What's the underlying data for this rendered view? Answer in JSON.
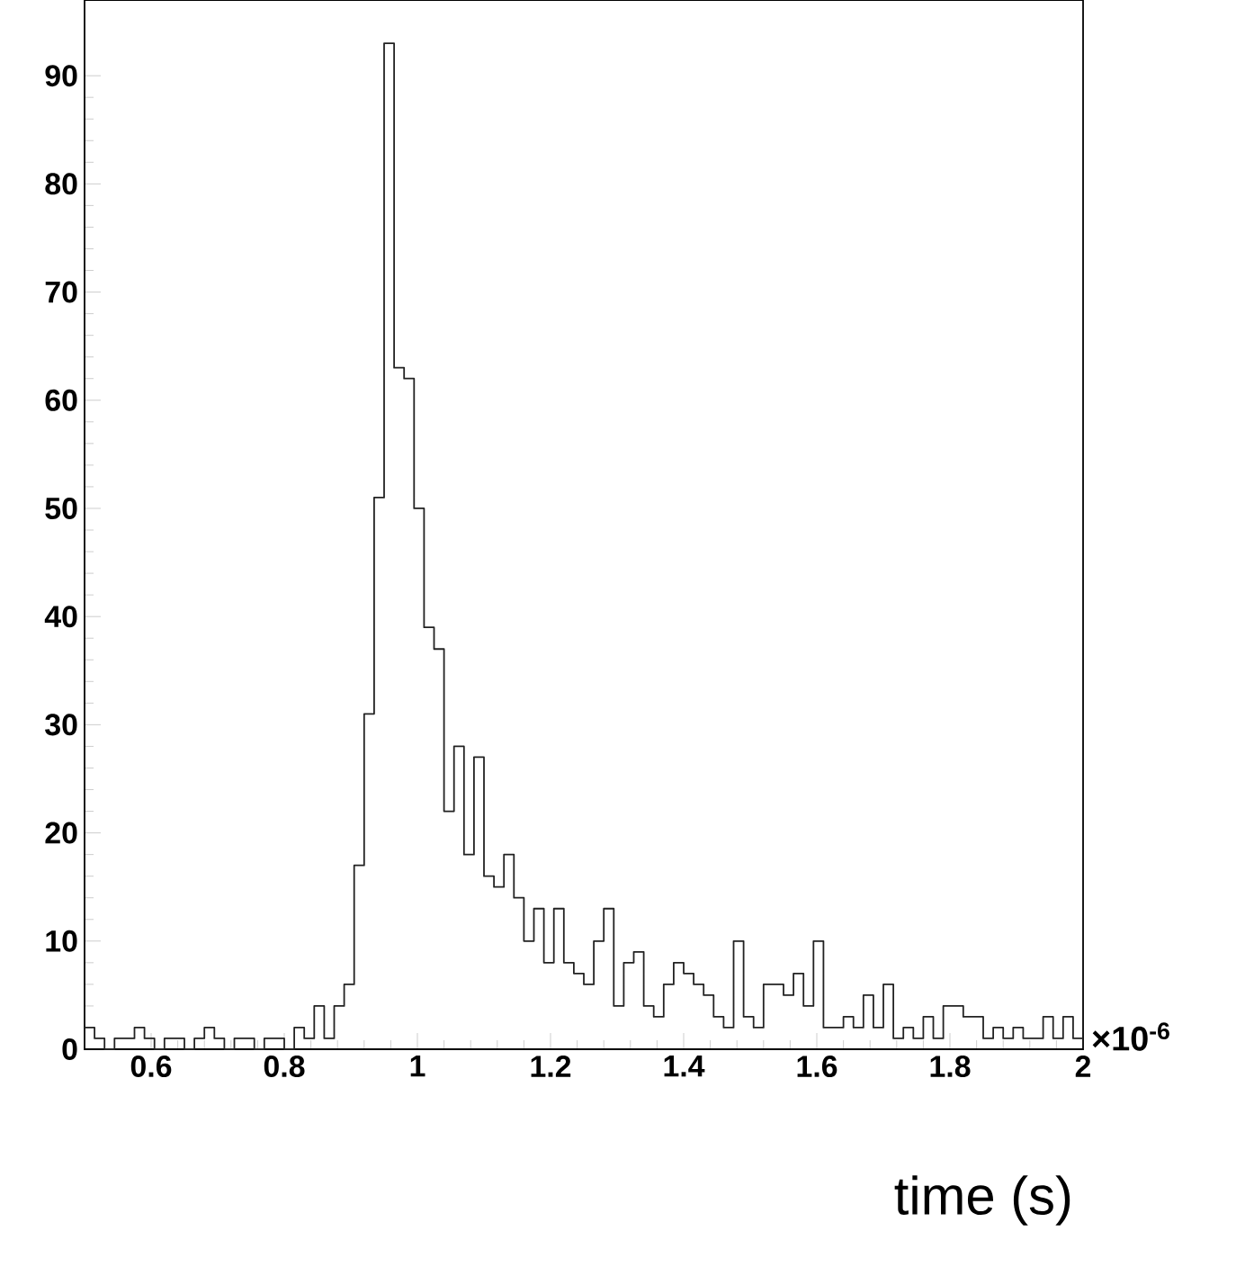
{
  "chart_data": {
    "type": "histogram",
    "xlabel": "time (s)",
    "annotations": [
      "×10$^{-6}$"
    ],
    "color": "#222222",
    "bins": [
      0.5,
      0.515,
      0.53,
      0.545,
      0.56,
      0.575,
      0.59,
      0.605,
      0.62,
      0.635,
      0.65,
      0.665,
      0.68,
      0.695,
      0.71,
      0.725,
      0.74,
      0.755,
      0.77,
      0.785,
      0.8,
      0.815,
      0.83,
      0.845,
      0.86,
      0.875,
      0.89,
      0.905,
      0.92,
      0.935,
      0.95,
      0.965,
      0.98,
      0.995,
      1.01,
      1.025,
      1.04,
      1.055,
      1.07,
      1.085,
      1.1,
      1.115,
      1.13,
      1.145,
      1.16,
      1.175,
      1.19,
      1.205,
      1.22,
      1.235,
      1.25,
      1.265,
      1.28,
      1.295,
      1.31,
      1.325,
      1.34,
      1.355,
      1.37,
      1.385,
      1.4,
      1.415,
      1.43,
      1.445,
      1.46,
      1.475,
      1.49,
      1.505,
      1.52,
      1.535,
      1.55,
      1.565,
      1.58,
      1.595,
      1.61,
      1.625,
      1.64,
      1.655,
      1.67,
      1.685,
      1.7,
      1.715,
      1.73,
      1.745,
      1.76,
      1.775,
      1.79,
      1.805,
      1.82,
      1.835,
      1.85,
      1.865,
      1.88,
      1.895,
      1.91,
      1.925,
      1.94,
      1.955,
      1.97,
      1.985,
      2.0
    ],
    "values": [
      2,
      1,
      0,
      1,
      1,
      2,
      1,
      0,
      1,
      1,
      0,
      1,
      2,
      1,
      0,
      1,
      1,
      0,
      1,
      1,
      0,
      2,
      1,
      4,
      1,
      4,
      6,
      17,
      31,
      51,
      93,
      63,
      62,
      50,
      39,
      37,
      22,
      28,
      18,
      27,
      16,
      15,
      18,
      14,
      10,
      13,
      8,
      13,
      8,
      7,
      6,
      10,
      13,
      4,
      8,
      9,
      4,
      3,
      6,
      8,
      7,
      6,
      5,
      3,
      2,
      10,
      3,
      2,
      6,
      6,
      5,
      7,
      4,
      10,
      2,
      2,
      3,
      2,
      5,
      2,
      6,
      1,
      2,
      1,
      3,
      1,
      4,
      4,
      3,
      3,
      1,
      2,
      1,
      2,
      1,
      1,
      3,
      1,
      3,
      1
    ],
    "xlim": [
      0.5,
      2
    ],
    "ylim": [
      0,
      97
    ],
    "xticks": [
      0.6,
      0.8,
      1,
      1.2,
      1.4,
      1.6,
      1.8,
      2
    ],
    "yticks": [
      0,
      10,
      20,
      30,
      40,
      50,
      60,
      70,
      80,
      90
    ]
  }
}
